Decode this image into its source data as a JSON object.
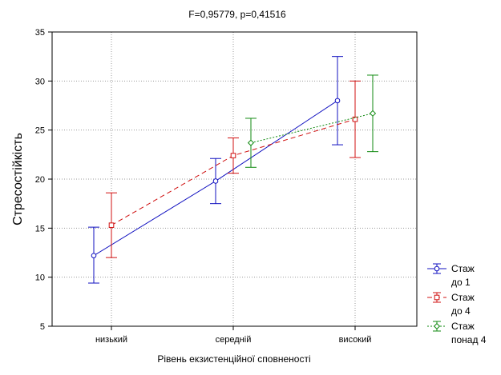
{
  "chart_data": {
    "type": "line",
    "title": "F=0,95779, p=0,41516",
    "xlabel": "Рівень екзистенційної сповненості",
    "ylabel": "Стресостійкість",
    "categories": [
      "низький",
      "середній",
      "високий"
    ],
    "ylim": [
      5,
      35
    ],
    "yticks": [
      5,
      10,
      15,
      20,
      25,
      30,
      35
    ],
    "grid": true,
    "error_bars": true,
    "legend_position": "bottom-right",
    "series": [
      {
        "name": "Стаж до 1",
        "legend_lines": [
          "Стаж",
          "до 1"
        ],
        "color": "#1010c0",
        "line_style": "solid",
        "marker": "circle",
        "values": [
          12.2,
          19.8,
          28.0
        ],
        "lower": [
          9.4,
          17.5,
          23.5
        ],
        "upper": [
          15.1,
          22.1,
          32.5
        ]
      },
      {
        "name": "Стаж до 4",
        "legend_lines": [
          "Стаж",
          "до 4"
        ],
        "color": "#d01010",
        "line_style": "dashed",
        "marker": "square",
        "values": [
          15.3,
          22.4,
          26.1
        ],
        "lower": [
          12.0,
          20.6,
          22.2
        ],
        "upper": [
          18.6,
          24.2,
          30.0
        ]
      },
      {
        "name": "Стаж понад 4",
        "legend_lines": [
          "Стаж",
          "понад 4"
        ],
        "color": "#108a10",
        "line_style": "dotted",
        "marker": "diamond",
        "values": [
          null,
          23.7,
          26.7
        ],
        "lower": [
          null,
          21.2,
          22.8
        ],
        "upper": [
          null,
          26.2,
          30.6
        ]
      }
    ]
  }
}
